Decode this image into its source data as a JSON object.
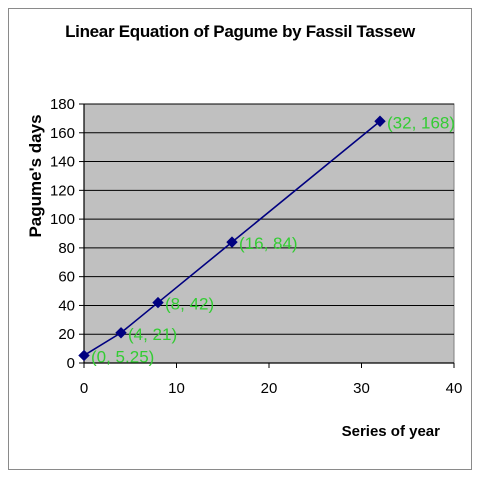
{
  "chart_data": {
    "type": "scatter",
    "title": "Linear Equation of Pagume by Fassil Tassew",
    "xlabel": "Series of year",
    "ylabel": "Pagume's days",
    "xlim": [
      0,
      40
    ],
    "ylim": [
      0,
      180
    ],
    "x_ticks": [
      0,
      10,
      20,
      30,
      40
    ],
    "y_ticks": [
      0,
      20,
      40,
      60,
      80,
      100,
      120,
      140,
      160,
      180
    ],
    "grid": true,
    "series": [
      {
        "x": [
          0,
          4,
          8,
          16,
          32
        ],
        "y": [
          5.25,
          21,
          42,
          84,
          168
        ],
        "labels": [
          "(0, 5.25)",
          "(4, 21)",
          "(8, 42)",
          "(16, 84)",
          "(32, 168)"
        ],
        "color": "#000080",
        "marker": "diamond",
        "line": true
      }
    ],
    "plot_background": "#c0c0c0",
    "label_color": "#33cc33"
  }
}
